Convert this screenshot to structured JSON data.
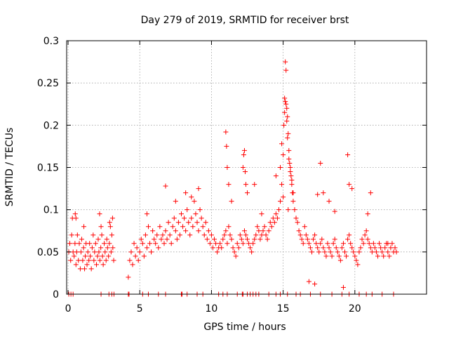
{
  "chart_data": {
    "type": "scatter",
    "title": "Day 279 of 2019, SRMTID for receiver brst",
    "xlabel": "GPS time / hours",
    "ylabel": "SRMTID / TECUs",
    "xlim": [
      -0.1,
      25.0
    ],
    "ylim": [
      0,
      0.3
    ],
    "xticks": [
      0,
      5,
      10,
      15,
      20
    ],
    "xtick_labels": [
      "0",
      "5",
      "10",
      "15",
      "20"
    ],
    "yticks": [
      0,
      0.05,
      0.1,
      0.15,
      0.2,
      0.25,
      0.3
    ],
    "ytick_labels": [
      "0",
      "0.05",
      "0.1",
      "0.15",
      "0.2",
      "0.25",
      "0.3"
    ],
    "grid": true,
    "marker": "+",
    "color": "#ff0000",
    "series": [
      {
        "name": "SRMTID",
        "x": [
          0.05,
          0.12,
          0.18,
          0.25,
          0.3,
          0.35,
          0.42,
          0.48,
          0.55,
          0.6,
          0.65,
          0.72,
          0.78,
          0.85,
          0.9,
          0.95,
          1.02,
          1.08,
          1.15,
          1.2,
          1.25,
          1.32,
          1.38,
          1.45,
          1.5,
          1.55,
          1.62,
          1.68,
          1.75,
          1.8,
          1.85,
          1.92,
          1.98,
          2.05,
          2.1,
          2.15,
          2.22,
          2.28,
          2.35,
          2.4,
          2.45,
          2.52,
          2.58,
          2.65,
          2.7,
          2.75,
          2.82,
          2.88,
          2.95,
          3.0,
          3.05,
          3.12,
          3.18,
          0.5,
          0.55,
          1.1,
          2.2,
          2.3,
          2.9,
          3.1,
          4.2,
          4.3,
          4.4,
          4.5,
          4.6,
          4.7,
          4.8,
          4.9,
          5.0,
          5.1,
          5.2,
          5.3,
          5.4,
          5.5,
          5.6,
          5.7,
          5.8,
          5.9,
          6.0,
          6.1,
          6.2,
          6.3,
          6.4,
          6.5,
          6.6,
          6.7,
          6.8,
          6.9,
          7.0,
          7.1,
          7.2,
          7.3,
          7.4,
          7.5,
          7.6,
          7.7,
          7.8,
          7.9,
          8.0,
          8.1,
          8.2,
          8.3,
          8.4,
          8.5,
          8.6,
          8.7,
          8.8,
          8.9,
          9.0,
          9.1,
          9.2,
          9.3,
          9.4,
          9.5,
          9.6,
          9.7,
          9.8,
          9.9,
          10.0,
          10.1,
          10.2,
          10.3,
          10.4,
          10.5,
          6.8,
          7.5,
          8.2,
          8.6,
          9.1,
          5.5,
          10.6,
          10.7,
          10.8,
          10.9,
          11.0,
          11.1,
          11.2,
          11.3,
          11.4,
          11.5,
          11.6,
          11.7,
          11.8,
          11.9,
          12.0,
          12.1,
          12.2,
          12.3,
          12.4,
          12.5,
          12.6,
          12.7,
          12.8,
          12.9,
          13.0,
          13.1,
          13.2,
          13.3,
          13.4,
          13.5,
          13.6,
          13.7,
          13.8,
          13.9,
          14.0,
          14.1,
          14.2,
          14.3,
          14.4,
          14.5,
          14.6,
          14.7,
          14.8,
          11.0,
          11.05,
          11.1,
          11.2,
          12.2,
          12.25,
          12.3,
          12.35,
          12.4,
          12.5,
          11.4,
          13.0,
          13.5,
          14.5,
          14.8,
          14.9,
          15.0,
          15.05,
          15.1,
          15.15,
          15.2,
          15.25,
          15.3,
          15.35,
          15.4,
          15.45,
          15.5,
          15.55,
          15.6,
          15.65,
          15.7,
          15.8,
          15.9,
          16.0,
          15.15,
          15.2,
          15.1,
          15.25,
          15.3,
          15.4,
          15.5,
          14.9,
          15.0,
          15.6,
          15.7,
          15.35,
          16.1,
          16.2,
          16.3,
          16.4,
          16.5,
          16.6,
          16.7,
          16.8,
          16.9,
          17.0,
          17.1,
          17.2,
          17.3,
          17.4,
          17.5,
          17.6,
          17.7,
          17.8,
          17.9,
          18.0,
          18.1,
          18.2,
          18.3,
          18.4,
          18.5,
          18.6,
          18.7,
          18.8,
          18.9,
          19.0,
          19.1,
          19.2,
          19.3,
          19.4,
          19.5,
          19.6,
          19.7,
          19.8,
          19.9,
          20.0,
          20.1,
          20.2,
          20.3,
          20.4,
          20.5,
          20.6,
          20.7,
          20.8,
          20.9,
          21.0,
          21.1,
          21.2,
          21.3,
          21.4,
          21.5,
          21.6,
          21.7,
          21.8,
          21.9,
          22.0,
          22.1,
          22.2,
          22.3,
          22.4,
          22.5,
          22.6,
          22.7,
          22.8,
          22.9,
          17.6,
          17.8,
          18.2,
          19.5,
          19.6,
          20.9,
          16.8,
          17.2,
          17.4,
          18.6,
          19.2,
          19.8,
          21.1,
          22.3
        ],
        "y": [
          0.05,
          0.06,
          0.04,
          0.07,
          0.09,
          0.05,
          0.045,
          0.06,
          0.035,
          0.05,
          0.07,
          0.04,
          0.06,
          0.03,
          0.05,
          0.065,
          0.04,
          0.055,
          0.03,
          0.045,
          0.06,
          0.035,
          0.05,
          0.04,
          0.06,
          0.045,
          0.03,
          0.055,
          0.07,
          0.04,
          0.05,
          0.06,
          0.035,
          0.045,
          0.065,
          0.05,
          0.04,
          0.055,
          0.07,
          0.045,
          0.035,
          0.06,
          0.05,
          0.04,
          0.065,
          0.055,
          0.045,
          0.06,
          0.08,
          0.05,
          0.07,
          0.055,
          0.04,
          0.095,
          0.09,
          0.08,
          0.095,
          0.08,
          0.085,
          0.09,
          0.02,
          0.04,
          0.05,
          0.035,
          0.06,
          0.045,
          0.055,
          0.04,
          0.05,
          0.065,
          0.06,
          0.045,
          0.07,
          0.055,
          0.08,
          0.06,
          0.05,
          0.075,
          0.065,
          0.06,
          0.07,
          0.055,
          0.08,
          0.065,
          0.07,
          0.06,
          0.075,
          0.065,
          0.085,
          0.07,
          0.06,
          0.08,
          0.09,
          0.075,
          0.065,
          0.085,
          0.07,
          0.095,
          0.08,
          0.09,
          0.075,
          0.1,
          0.085,
          0.07,
          0.09,
          0.08,
          0.11,
          0.095,
          0.085,
          0.075,
          0.1,
          0.09,
          0.08,
          0.07,
          0.085,
          0.065,
          0.075,
          0.06,
          0.07,
          0.055,
          0.065,
          0.06,
          0.05,
          0.055,
          0.128,
          0.11,
          0.12,
          0.115,
          0.125,
          0.095,
          0.06,
          0.055,
          0.065,
          0.07,
          0.075,
          0.06,
          0.08,
          0.07,
          0.065,
          0.055,
          0.05,
          0.045,
          0.06,
          0.055,
          0.07,
          0.065,
          0.06,
          0.075,
          0.07,
          0.065,
          0.06,
          0.055,
          0.05,
          0.06,
          0.065,
          0.07,
          0.08,
          0.075,
          0.065,
          0.07,
          0.075,
          0.08,
          0.07,
          0.065,
          0.075,
          0.085,
          0.08,
          0.09,
          0.085,
          0.095,
          0.09,
          0.1,
          0.11,
          0.192,
          0.175,
          0.15,
          0.13,
          0.15,
          0.165,
          0.17,
          0.145,
          0.13,
          0.12,
          0.11,
          0.13,
          0.095,
          0.14,
          0.15,
          0.178,
          0.165,
          0.2,
          0.232,
          0.228,
          0.225,
          0.22,
          0.21,
          0.19,
          0.17,
          0.155,
          0.15,
          0.14,
          0.13,
          0.12,
          0.11,
          0.1,
          0.09,
          0.085,
          0.275,
          0.265,
          0.215,
          0.205,
          0.185,
          0.16,
          0.145,
          0.13,
          0.115,
          0.135,
          0.12,
          0.1,
          0.075,
          0.07,
          0.065,
          0.06,
          0.08,
          0.07,
          0.065,
          0.06,
          0.055,
          0.05,
          0.065,
          0.07,
          0.06,
          0.055,
          0.05,
          0.06,
          0.065,
          0.055,
          0.05,
          0.045,
          0.06,
          0.055,
          0.05,
          0.045,
          0.06,
          0.065,
          0.055,
          0.05,
          0.045,
          0.04,
          0.055,
          0.06,
          0.05,
          0.045,
          0.065,
          0.07,
          0.06,
          0.055,
          0.05,
          0.045,
          0.04,
          0.035,
          0.05,
          0.055,
          0.065,
          0.06,
          0.07,
          0.075,
          0.065,
          0.06,
          0.055,
          0.05,
          0.06,
          0.055,
          0.05,
          0.045,
          0.06,
          0.055,
          0.05,
          0.045,
          0.055,
          0.06,
          0.05,
          0.045,
          0.055,
          0.06,
          0.05,
          0.055,
          0.05,
          0.155,
          0.12,
          0.11,
          0.165,
          0.13,
          0.095,
          0.015,
          0.012,
          0.118,
          0.098,
          0.008,
          0.125,
          0.12,
          0.06
        ]
      }
    ],
    "zero_markers_x": [
      0.05,
      0.2,
      0.35,
      2.3,
      2.85,
      3.05,
      3.2,
      4.2,
      4.25,
      5.2,
      5.6,
      6.3,
      6.8,
      7.9,
      7.95,
      8.3,
      9.0,
      9.4,
      10.5,
      10.8,
      11.1,
      11.8,
      12.15,
      12.2,
      12.5,
      12.7,
      12.9,
      13.1,
      13.3,
      14.0,
      14.5,
      14.8,
      15.3,
      15.9,
      16.2,
      16.9,
      17.6,
      18.4,
      19.1,
      19.6,
      20.3,
      20.8,
      21.2,
      21.9,
      22.7
    ]
  }
}
